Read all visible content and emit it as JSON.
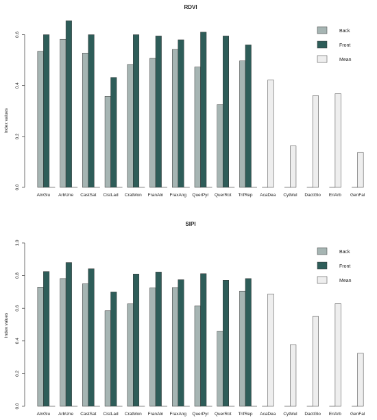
{
  "colors": {
    "back": "#a6b5b3",
    "front": "#2e5d59",
    "mean": "#eeeeee",
    "bar_stroke": "#333333",
    "axis": "#333333"
  },
  "chart_data": [
    {
      "type": "bar",
      "title": "RDVI",
      "ylabel": "Index values",
      "ylim": [
        0,
        0.65
      ],
      "yticks": [
        0.0,
        0.2,
        0.4,
        0.6
      ],
      "ytick_labels": [
        "0.0",
        "0.2",
        "0.4",
        "0.6"
      ],
      "categories": [
        "AlnGlu",
        "ArbUne",
        "CastSat",
        "CistLad",
        "CratMon",
        "FranAln",
        "FraxAng",
        "QuerPyr",
        "QuerRot",
        "TrifRep",
        "AcaDea",
        "CytMul",
        "DactGlo",
        "EriArb",
        "GenFal"
      ],
      "legend": {
        "position": "top-right",
        "entries": [
          "Back",
          "Front",
          "Mean"
        ]
      },
      "series": [
        {
          "name": "Back",
          "values": [
            0.535,
            0.582,
            0.528,
            0.358,
            0.483,
            0.507,
            0.542,
            0.473,
            0.325,
            0.497,
            0,
            0,
            0,
            0,
            0
          ]
        },
        {
          "name": "Front",
          "values": [
            0.6,
            0.655,
            0.6,
            0.432,
            0.6,
            0.595,
            0.58,
            0.61,
            0.595,
            0.56,
            0,
            0,
            0,
            0,
            0
          ]
        },
        {
          "name": "Mean",
          "values": [
            0,
            0,
            0,
            0,
            0,
            0,
            0,
            0,
            0,
            0,
            0.422,
            0.163,
            0.36,
            0.368,
            0.137
          ]
        }
      ]
    },
    {
      "type": "bar",
      "title": "SIPI",
      "ylabel": "Index values",
      "ylim": [
        0,
        1.0
      ],
      "yticks": [
        0.0,
        0.2,
        0.4,
        0.6,
        0.8,
        1.0
      ],
      "ytick_labels": [
        "0.0",
        "0.2",
        "0.4",
        "0.6",
        "0.8",
        "1.0"
      ],
      "categories": [
        "AlnGlu",
        "ArbUne",
        "CastSat",
        "CistLad",
        "CratMon",
        "FranAln",
        "FraxAng",
        "QuerPyr",
        "QuerRot",
        "TrifRep",
        "AcaDea",
        "CytMul",
        "DactGlo",
        "EriArb",
        "GenFal"
      ],
      "legend": {
        "position": "top-right",
        "entries": [
          "Back",
          "Front",
          "Mean"
        ]
      },
      "series": [
        {
          "name": "Back",
          "values": [
            0.73,
            0.782,
            0.75,
            0.585,
            0.627,
            0.725,
            0.727,
            0.614,
            0.46,
            0.705,
            0,
            0,
            0,
            0,
            0
          ]
        },
        {
          "name": "Front",
          "values": [
            0.825,
            0.88,
            0.842,
            0.7,
            0.81,
            0.822,
            0.775,
            0.812,
            0.772,
            0.782,
            0,
            0,
            0,
            0,
            0
          ]
        },
        {
          "name": "Mean",
          "values": [
            0,
            0,
            0,
            0,
            0,
            0,
            0,
            0,
            0,
            0,
            0.688,
            0.377,
            0.55,
            0.628,
            0.325
          ]
        }
      ]
    }
  ]
}
